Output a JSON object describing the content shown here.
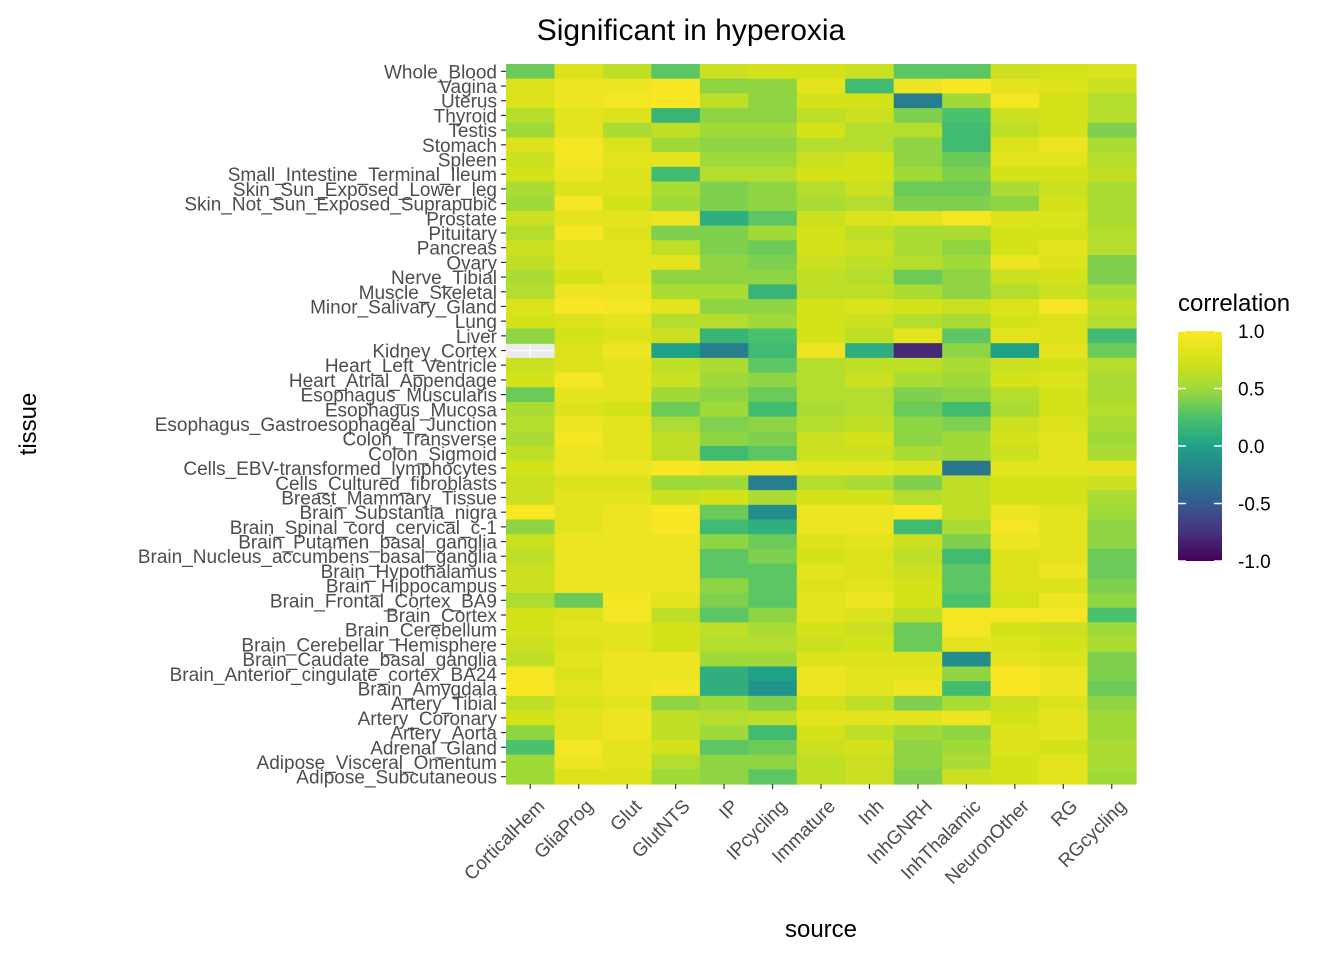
{
  "chart_data": {
    "type": "heatmap",
    "title": "Significant in hyperoxia",
    "xlabel": "source",
    "ylabel": "tissue",
    "x": [
      "CorticalHem",
      "GliaProg",
      "Glut",
      "GlutNTS",
      "IP",
      "IPcycling",
      "Immature",
      "Inh",
      "InhGNRH",
      "InhThalamic",
      "NeuronOther",
      "RG",
      "RGcycling"
    ],
    "y": [
      "Whole_Blood",
      "Vagina",
      "Uterus",
      "Thyroid",
      "Testis",
      "Stomach",
      "Spleen",
      "Small_Intestine_Terminal_Ileum",
      "Skin_Sun_Exposed_Lower_leg",
      "Skin_Not_Sun_Exposed_Suprapubic",
      "Prostate",
      "Pituitary",
      "Pancreas",
      "Ovary",
      "Nerve_Tibial",
      "Muscle_Skeletal",
      "Minor_Salivary_Gland",
      "Lung",
      "Liver",
      "Kidney_Cortex",
      "Heart_Left_Ventricle",
      "Heart_Atrial_Appendage",
      "Esophagus_Muscularis",
      "Esophagus_Mucosa",
      "Esophagus_Gastroesophageal_Junction",
      "Colon_Transverse",
      "Colon_Sigmoid",
      "Cells_EBV-transformed_lymphocytes",
      "Cells_Cultured_fibroblasts",
      "Breast_Mammary_Tissue",
      "Brain_Substantia_nigra",
      "Brain_Spinal_cord_cervical_c-1",
      "Brain_Putamen_basal_ganglia",
      "Brain_Nucleus_accumbens_basal_ganglia",
      "Brain_Hypothalamus",
      "Brain_Hippocampus",
      "Brain_Frontal_Cortex_BA9",
      "Brain_Cortex",
      "Brain_Cerebellum",
      "Brain_Cerebellar_Hemisphere",
      "Brain_Caudate_basal_ganglia",
      "Brain_Anterior_cingulate_cortex_BA24",
      "Brain_Amygdala",
      "Artery_Tibial",
      "Artery_Coronary",
      "Artery_Aorta",
      "Adrenal_Gland",
      "Adipose_Visceral_Omentum",
      "Adipose_Subcutaneous"
    ],
    "values": [
      [
        0.35,
        0.8,
        0.65,
        0.3,
        0.7,
        0.75,
        0.75,
        0.7,
        0.3,
        0.3,
        0.7,
        0.75,
        0.8
      ],
      [
        0.8,
        0.9,
        0.9,
        0.98,
        0.45,
        0.45,
        0.85,
        0.2,
        0.9,
        0.98,
        0.85,
        0.8,
        0.7
      ],
      [
        0.8,
        0.9,
        0.95,
        0.98,
        0.65,
        0.45,
        0.75,
        0.75,
        -0.25,
        0.5,
        0.95,
        0.75,
        0.6
      ],
      [
        0.6,
        0.85,
        0.8,
        0.15,
        0.45,
        0.45,
        0.65,
        0.7,
        0.4,
        0.25,
        0.7,
        0.75,
        0.6
      ],
      [
        0.5,
        0.85,
        0.55,
        0.65,
        0.5,
        0.5,
        0.75,
        0.6,
        0.6,
        0.2,
        0.65,
        0.75,
        0.4
      ],
      [
        0.8,
        0.95,
        0.8,
        0.5,
        0.45,
        0.45,
        0.6,
        0.6,
        0.45,
        0.2,
        0.8,
        0.9,
        0.55
      ],
      [
        0.7,
        0.95,
        0.85,
        0.85,
        0.5,
        0.5,
        0.7,
        0.75,
        0.45,
        0.35,
        0.85,
        0.85,
        0.6
      ],
      [
        0.75,
        0.9,
        0.8,
        0.2,
        0.6,
        0.6,
        0.75,
        0.75,
        0.5,
        0.4,
        0.75,
        0.75,
        0.65
      ],
      [
        0.55,
        0.8,
        0.8,
        0.55,
        0.4,
        0.45,
        0.6,
        0.7,
        0.35,
        0.35,
        0.55,
        0.7,
        0.55
      ],
      [
        0.5,
        0.95,
        0.75,
        0.5,
        0.4,
        0.45,
        0.55,
        0.6,
        0.4,
        0.4,
        0.45,
        0.75,
        0.55
      ],
      [
        0.7,
        0.85,
        0.85,
        0.9,
        0.1,
        0.3,
        0.7,
        0.8,
        0.85,
        0.95,
        0.8,
        0.8,
        0.55
      ],
      [
        0.6,
        0.95,
        0.8,
        0.4,
        0.4,
        0.5,
        0.75,
        0.65,
        0.55,
        0.55,
        0.75,
        0.75,
        0.6
      ],
      [
        0.7,
        0.85,
        0.85,
        0.65,
        0.4,
        0.35,
        0.75,
        0.7,
        0.55,
        0.45,
        0.75,
        0.85,
        0.6
      ],
      [
        0.65,
        0.85,
        0.85,
        0.85,
        0.45,
        0.4,
        0.7,
        0.65,
        0.6,
        0.5,
        0.9,
        0.8,
        0.4
      ],
      [
        0.55,
        0.75,
        0.85,
        0.45,
        0.45,
        0.45,
        0.65,
        0.6,
        0.35,
        0.45,
        0.7,
        0.75,
        0.4
      ],
      [
        0.6,
        0.9,
        0.9,
        0.55,
        0.55,
        0.15,
        0.65,
        0.65,
        0.55,
        0.45,
        0.6,
        0.7,
        0.55
      ],
      [
        0.8,
        0.98,
        0.95,
        0.85,
        0.45,
        0.45,
        0.75,
        0.8,
        0.75,
        0.7,
        0.8,
        0.95,
        0.65
      ],
      [
        0.75,
        0.8,
        0.85,
        0.6,
        0.6,
        0.5,
        0.75,
        0.7,
        0.6,
        0.55,
        0.75,
        0.8,
        0.6
      ],
      [
        0.45,
        0.75,
        0.8,
        0.7,
        0.15,
        0.25,
        0.75,
        0.65,
        0.85,
        0.3,
        0.85,
        0.8,
        0.2
      ],
      [
        null,
        0.8,
        0.9,
        0.0,
        -0.25,
        0.2,
        0.9,
        0.1,
        -0.8,
        0.45,
        0.0,
        0.85,
        0.35
      ],
      [
        0.7,
        0.8,
        0.85,
        0.65,
        0.55,
        0.3,
        0.6,
        0.65,
        0.65,
        0.55,
        0.7,
        0.75,
        0.6
      ],
      [
        0.75,
        0.95,
        0.85,
        0.7,
        0.5,
        0.45,
        0.6,
        0.7,
        0.55,
        0.5,
        0.75,
        0.8,
        0.55
      ],
      [
        0.35,
        0.85,
        0.85,
        0.5,
        0.45,
        0.35,
        0.6,
        0.6,
        0.4,
        0.45,
        0.6,
        0.75,
        0.55
      ],
      [
        0.55,
        0.8,
        0.75,
        0.35,
        0.5,
        0.2,
        0.55,
        0.6,
        0.35,
        0.2,
        0.55,
        0.75,
        0.6
      ],
      [
        0.6,
        0.9,
        0.85,
        0.55,
        0.4,
        0.45,
        0.6,
        0.65,
        0.45,
        0.4,
        0.7,
        0.8,
        0.55
      ],
      [
        0.55,
        0.95,
        0.85,
        0.65,
        0.45,
        0.4,
        0.7,
        0.75,
        0.45,
        0.5,
        0.75,
        0.85,
        0.5
      ],
      [
        0.65,
        0.9,
        0.85,
        0.65,
        0.2,
        0.3,
        0.7,
        0.7,
        0.55,
        0.5,
        0.7,
        0.85,
        0.55
      ],
      [
        0.75,
        0.9,
        0.9,
        0.98,
        0.9,
        0.9,
        0.85,
        0.85,
        0.8,
        -0.3,
        0.85,
        0.85,
        0.85
      ],
      [
        0.7,
        0.8,
        0.8,
        0.5,
        0.5,
        -0.25,
        0.6,
        0.55,
        0.4,
        0.65,
        0.75,
        0.75,
        0.7
      ],
      [
        0.7,
        0.85,
        0.85,
        0.7,
        0.75,
        0.55,
        0.75,
        0.75,
        0.6,
        0.65,
        0.75,
        0.75,
        0.55
      ],
      [
        0.98,
        0.85,
        0.9,
        0.98,
        0.35,
        -0.15,
        0.9,
        0.9,
        0.98,
        0.65,
        0.9,
        0.85,
        0.5
      ],
      [
        0.45,
        0.85,
        0.9,
        0.98,
        0.2,
        0.1,
        0.9,
        0.9,
        0.2,
        0.55,
        0.95,
        0.85,
        0.45
      ],
      [
        0.7,
        0.9,
        0.9,
        0.9,
        0.45,
        0.35,
        0.8,
        0.85,
        0.7,
        0.4,
        0.9,
        0.85,
        0.45
      ],
      [
        0.65,
        0.9,
        0.9,
        0.9,
        0.3,
        0.4,
        0.75,
        0.8,
        0.65,
        0.2,
        0.8,
        0.85,
        0.35
      ],
      [
        0.7,
        0.9,
        0.9,
        0.9,
        0.3,
        0.3,
        0.85,
        0.8,
        0.7,
        0.3,
        0.8,
        0.9,
        0.35
      ],
      [
        0.7,
        0.9,
        0.9,
        0.9,
        0.45,
        0.3,
        0.8,
        0.85,
        0.75,
        0.3,
        0.8,
        0.8,
        0.4
      ],
      [
        0.55,
        0.35,
        0.95,
        0.85,
        0.4,
        0.3,
        0.85,
        0.9,
        0.75,
        0.25,
        0.75,
        0.9,
        0.45
      ],
      [
        0.75,
        0.8,
        0.95,
        0.65,
        0.3,
        0.45,
        0.85,
        0.8,
        0.65,
        0.95,
        0.95,
        0.95,
        0.25
      ],
      [
        0.75,
        0.85,
        0.85,
        0.75,
        0.65,
        0.55,
        0.75,
        0.7,
        0.35,
        0.95,
        0.75,
        0.7,
        0.5
      ],
      [
        0.7,
        0.8,
        0.85,
        0.75,
        0.6,
        0.6,
        0.7,
        0.75,
        0.35,
        0.85,
        0.8,
        0.75,
        0.55
      ],
      [
        0.65,
        0.85,
        0.9,
        0.9,
        0.5,
        0.5,
        0.8,
        0.8,
        0.8,
        -0.15,
        0.85,
        0.8,
        0.4
      ],
      [
        0.95,
        0.8,
        0.9,
        0.9,
        0.1,
        0.0,
        0.9,
        0.85,
        0.85,
        0.45,
        0.98,
        0.9,
        0.4
      ],
      [
        0.98,
        0.85,
        0.9,
        0.95,
        0.1,
        -0.1,
        0.9,
        0.85,
        0.9,
        0.2,
        0.98,
        0.9,
        0.35
      ],
      [
        0.65,
        0.8,
        0.85,
        0.45,
        0.5,
        0.4,
        0.75,
        0.65,
        0.4,
        0.55,
        0.7,
        0.8,
        0.45
      ],
      [
        0.75,
        0.85,
        0.9,
        0.65,
        0.6,
        0.65,
        0.85,
        0.85,
        0.85,
        0.9,
        0.75,
        0.85,
        0.5
      ],
      [
        0.45,
        0.85,
        0.9,
        0.65,
        0.5,
        0.2,
        0.75,
        0.65,
        0.5,
        0.45,
        0.8,
        0.85,
        0.5
      ],
      [
        0.25,
        0.95,
        0.85,
        0.75,
        0.3,
        0.35,
        0.7,
        0.75,
        0.45,
        0.5,
        0.8,
        0.75,
        0.55
      ],
      [
        0.5,
        0.9,
        0.85,
        0.6,
        0.45,
        0.45,
        0.65,
        0.7,
        0.45,
        0.55,
        0.75,
        0.85,
        0.55
      ],
      [
        0.5,
        0.8,
        0.8,
        0.5,
        0.45,
        0.3,
        0.65,
        0.7,
        0.4,
        0.7,
        0.75,
        0.85,
        0.5
      ]
    ],
    "legend_title": "correlation",
    "legend_ticks": [
      "1.0",
      "0.5",
      "0.0",
      "-0.5",
      "-1.0"
    ],
    "legend_tick_values": [
      1.0,
      0.5,
      0.0,
      -0.5,
      -1.0
    ],
    "value_range": [
      -1,
      1
    ],
    "colormap": "viridis",
    "na_color": "#7f7f7f",
    "legend_position": "right",
    "grid": true
  }
}
